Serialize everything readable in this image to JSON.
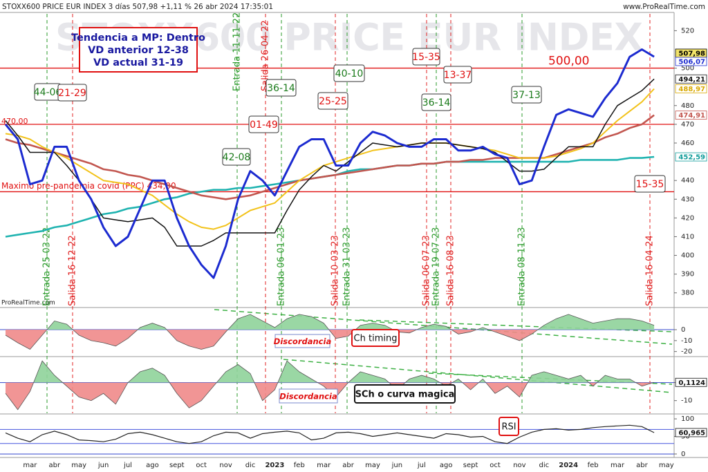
{
  "chart_data": [
    {
      "type": "line",
      "title": "STOXX600 PRICE EUR INDEX 3 días 507,98 +1,11 % 26 abr 2024 17:35:01",
      "source": "www.ProRealTime.com",
      "watermark": "STOXX600 PRICE EUR INDEX",
      "credit": "ProRealTime.com",
      "info_box": [
        "Tendencia a MP: Dentro",
        "VD anterior 12-38",
        "VD actual 31-19"
      ],
      "categories": [
        null,
        null,
        "mar",
        null,
        "abr",
        null,
        "may",
        null,
        "jun",
        null,
        "jul",
        null,
        "ago",
        null,
        "sept",
        null,
        "oct",
        null,
        "nov",
        null,
        "dic",
        null,
        "2023",
        null,
        "feb",
        null,
        "mar",
        null,
        "abr",
        null,
        "may",
        null,
        "jun",
        null,
        "jul",
        null,
        "ago",
        null,
        "sept",
        null,
        "oct",
        null,
        "nov",
        null,
        "dic",
        null,
        "2024",
        null,
        "feb",
        null,
        "mar",
        null,
        "abr",
        null,
        "may"
      ],
      "series": [
        {
          "color": "#1c2bd0",
          "values": [
            470,
            462,
            438,
            440,
            458,
            458,
            440,
            430,
            415,
            405,
            410,
            425,
            440,
            440,
            420,
            405,
            395,
            388,
            405,
            430,
            445,
            440,
            432,
            445,
            458,
            462,
            462,
            448,
            448,
            460,
            466,
            464,
            460,
            458,
            458,
            462,
            462,
            456,
            456,
            458,
            454,
            452,
            438,
            440,
            458,
            475,
            478,
            476,
            474,
            484,
            492,
            506,
            510,
            506.07,
            null
          ]
        },
        {
          "color": "#111111",
          "values": [
            472,
            464,
            455,
            455,
            455,
            448,
            440,
            430,
            420,
            419,
            418,
            419,
            420,
            415,
            405,
            405,
            405,
            408,
            412,
            412,
            412,
            412,
            412,
            424,
            435,
            442,
            448,
            445,
            450,
            455,
            460,
            459,
            458,
            459,
            460,
            460,
            460,
            459,
            458,
            457,
            455,
            450,
            445,
            445,
            446,
            452,
            458,
            458,
            458,
            470,
            480,
            484,
            488,
            494.21,
            null
          ]
        },
        {
          "color": "#f2c219",
          "values": [
            465,
            464,
            462,
            458,
            455,
            452,
            448,
            444,
            440,
            439,
            438,
            435,
            432,
            427,
            422,
            418,
            415,
            414,
            416,
            420,
            424,
            426,
            428,
            434,
            440,
            444,
            448,
            450,
            452,
            454,
            456,
            457,
            458,
            459,
            460,
            460,
            460,
            459,
            458,
            457,
            456,
            454,
            452,
            452,
            452,
            453,
            455,
            457,
            460,
            466,
            472,
            477,
            482,
            488.97,
            null
          ]
        },
        {
          "color": "#c2564f",
          "values": [
            462,
            460,
            459,
            457,
            455,
            453,
            451,
            449,
            446,
            445,
            443,
            442,
            440,
            438,
            436,
            434,
            432,
            431,
            430,
            431,
            432,
            434,
            436,
            438,
            440,
            441,
            442,
            443,
            444,
            445,
            446,
            447,
            448,
            448,
            449,
            449,
            450,
            450,
            451,
            451,
            452,
            452,
            452,
            452,
            452,
            454,
            456,
            458,
            460,
            463,
            465,
            468,
            470,
            474.91,
            null
          ]
        },
        {
          "color": "#1fb3b0",
          "values": [
            410,
            411,
            412,
            413,
            415,
            416,
            418,
            420,
            422,
            423,
            425,
            426,
            428,
            430,
            431,
            433,
            434,
            435,
            435,
            436,
            436,
            437,
            438,
            439,
            440,
            441,
            442,
            443,
            445,
            446,
            446,
            447,
            448,
            448,
            449,
            449,
            450,
            450,
            450,
            450,
            450,
            450,
            450,
            450,
            450,
            450,
            450,
            451,
            451,
            451,
            451,
            452,
            452,
            452.59,
            null
          ]
        }
      ],
      "ylim": [
        374,
        529
      ],
      "yticks": [
        520,
        500,
        480,
        470,
        460,
        440,
        430,
        420,
        410,
        400,
        390,
        380
      ],
      "grid": false,
      "hlines": [
        {
          "value": 500,
          "label": "500,00",
          "color": "#e01010"
        },
        {
          "value": 470,
          "label": "470,00",
          "color": "#e01010"
        },
        {
          "value": 434,
          "label": "Maximo pre-pandemia covid (PPC) 434,00",
          "color": "#e01010"
        }
      ],
      "tags": [
        {
          "value": 507.98,
          "label": "507,98",
          "color": "#000000",
          "background": "#f3e46a"
        },
        {
          "value": 506.07,
          "label": "506,07",
          "color": "#1c2bd0",
          "background": "#ffffff"
        },
        {
          "value": 494.21,
          "label": "494,21",
          "color": "#111111",
          "background": "#ffffff"
        },
        {
          "value": 488.97,
          "label": "488,97",
          "color": "#d8a800",
          "background": "#ffffff"
        },
        {
          "value": 474.91,
          "label": "474,91",
          "color": "#c2564f",
          "background": "#ffffff"
        },
        {
          "value": 452.59,
          "label": "452,59",
          "color": "#0f9c9a",
          "background": "#ffffff"
        }
      ],
      "signals": [
        {
          "label": "Entrada 25-03-22",
          "color": "#2a9a2a"
        },
        {
          "label": "Salida 16-12-22",
          "color": "#e02020"
        },
        {
          "label": "Entrada 11-11-22",
          "color": "#2a9a2a"
        },
        {
          "label": "Salida 26-04-22",
          "color": "#e02020"
        },
        {
          "label": "Entrada 06-01-23",
          "color": "#2a9a2a"
        },
        {
          "label": "Salida 10-03-23",
          "color": "#e02020"
        },
        {
          "label": "Entrada 31-03-23",
          "color": "#2a9a2a"
        },
        {
          "label": "Salida 06-07-23",
          "color": "#e02020"
        },
        {
          "label": "Entrada 19-07-23",
          "color": "#2a9a2a"
        },
        {
          "label": "Salida 16-08-23",
          "color": "#e02020"
        },
        {
          "label": "Entrada 08-11-23",
          "color": "#2a9a2a"
        },
        {
          "label": "Salida 16-04-24",
          "color": "#e02020"
        }
      ],
      "annotations": [
        {
          "text": "44-06",
          "color": "#1a7a1a"
        },
        {
          "text": "21-29",
          "color": "#e01010"
        },
        {
          "text": "42-08",
          "color": "#1a7a1a"
        },
        {
          "text": "01-49",
          "color": "#e01010"
        },
        {
          "text": "36-14",
          "color": "#1a7a1a"
        },
        {
          "text": "25-25",
          "color": "#e01010"
        },
        {
          "text": "40-10",
          "color": "#1a7a1a"
        },
        {
          "text": "15-35",
          "color": "#e01010"
        },
        {
          "text": "13-37",
          "color": "#e01010"
        },
        {
          "text": "36-14",
          "color": "#1a7a1a"
        },
        {
          "text": "37-13",
          "color": "#1a7a1a"
        },
        {
          "text": "15-35",
          "color": "#e01010"
        }
      ]
    },
    {
      "type": "area",
      "label": "Ch timing",
      "note": "Discordancia",
      "values": [
        -5,
        -12,
        -18,
        -5,
        8,
        5,
        -5,
        -10,
        -12,
        -15,
        -8,
        2,
        6,
        2,
        -10,
        -15,
        -18,
        -15,
        -2,
        10,
        14,
        8,
        2,
        10,
        14,
        12,
        6,
        -8,
        -6,
        4,
        6,
        4,
        -2,
        -3,
        2,
        5,
        3,
        -4,
        -2,
        2,
        -2,
        -6,
        -10,
        -4,
        4,
        10,
        14,
        10,
        6,
        8,
        10,
        10,
        8,
        4,
        null
      ],
      "color_up": "#8fd39a",
      "color_down": "#ef8a8a",
      "ylim": [
        -24,
        19
      ],
      "yticks": [
        0,
        -10,
        -20
      ]
    },
    {
      "type": "area",
      "label": "SCh o curva magica",
      "note": "Discordancia",
      "values": [
        -6,
        -15,
        -5,
        12,
        4,
        -2,
        -8,
        -10,
        -6,
        -12,
        0,
        6,
        8,
        4,
        -6,
        -14,
        -10,
        -2,
        6,
        10,
        5,
        -10,
        -4,
        12,
        6,
        2,
        -2,
        -8,
        0,
        6,
        4,
        2,
        -4,
        2,
        4,
        2,
        -2,
        2,
        -4,
        2,
        -6,
        -2,
        -8,
        4,
        6,
        4,
        2,
        4,
        -2,
        4,
        2,
        2,
        -2,
        0.1124,
        null
      ],
      "color_up": "#8fd39a",
      "color_down": "#ef8a8a",
      "ylim": [
        -17,
        14
      ],
      "yticks": [
        0,
        -10
      ],
      "tags": [
        {
          "value": 0.1124,
          "label": "0,1124",
          "color": "#111111",
          "background": "#ffffff"
        }
      ]
    },
    {
      "type": "line",
      "label": "RSI",
      "values": [
        60,
        45,
        35,
        55,
        65,
        55,
        40,
        38,
        35,
        42,
        58,
        62,
        55,
        45,
        35,
        30,
        35,
        52,
        62,
        60,
        45,
        58,
        62,
        65,
        60,
        40,
        45,
        60,
        62,
        58,
        50,
        55,
        60,
        55,
        50,
        45,
        58,
        55,
        48,
        50,
        35,
        30,
        48,
        62,
        70,
        72,
        68,
        70,
        75,
        78,
        80,
        82,
        78,
        60.965,
        null
      ],
      "color": "#222222",
      "levels": [
        70,
        30
      ],
      "ylim": [
        -6,
        112
      ],
      "yticks": [
        100,
        50,
        0
      ],
      "tags": [
        {
          "value": 60.965,
          "label": "60,965",
          "color": "#111111",
          "background": "#ffffff"
        }
      ]
    }
  ]
}
